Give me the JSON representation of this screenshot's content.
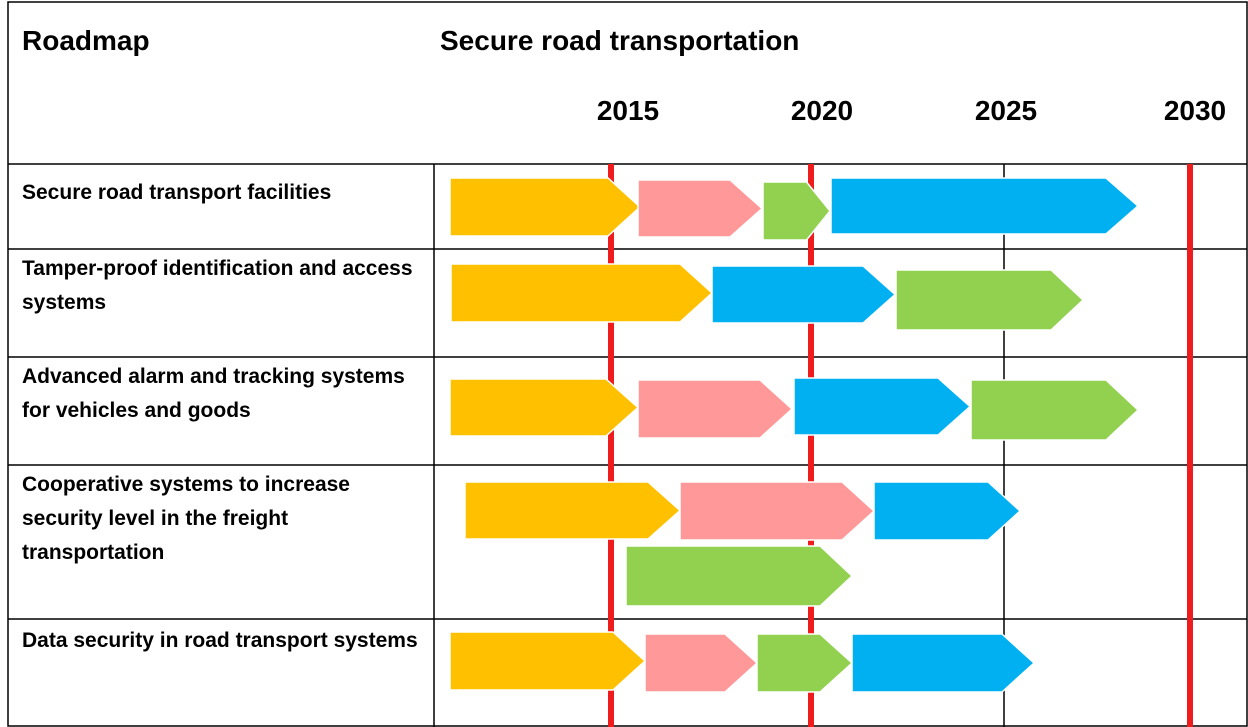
{
  "header": {
    "title": "Roadmap",
    "subtitle": "Secure road transportation",
    "years": [
      "2015",
      "2020",
      "2025",
      "2030"
    ]
  },
  "rows": [
    {
      "label": "Secure road transport facilities"
    },
    {
      "label": "Tamper-proof identification and access systems"
    },
    {
      "label": "Advanced alarm and tracking systems for vehicles and goods"
    },
    {
      "label": "Cooperative systems to increase security level in the freight transportation"
    },
    {
      "label": "Data security in road transport systems"
    }
  ]
}
